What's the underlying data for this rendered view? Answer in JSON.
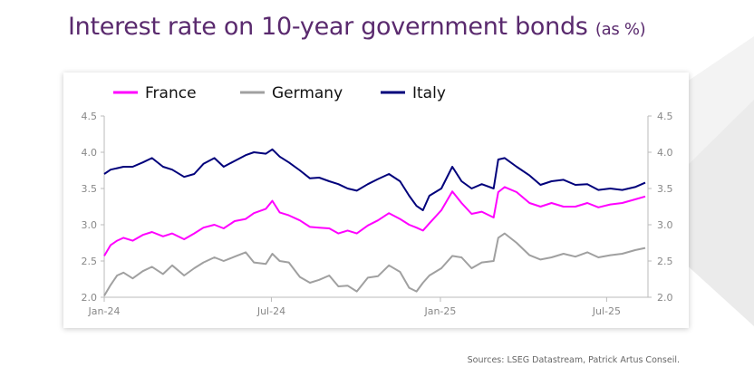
{
  "page": {
    "title": "Interest rate on 10-year government bonds",
    "title_unit": "(as %)",
    "source": "Sources: LSEG Datastream, Patrick Artus Conseil."
  },
  "colors": {
    "title": "#5a2a6e",
    "france": "#ff00ff",
    "germany": "#a0a0a0",
    "italy": "#00007b"
  },
  "chart_data": {
    "type": "line",
    "title": "",
    "xlabel": "",
    "ylabel": "",
    "ylim": [
      2.0,
      4.5
    ],
    "y_ticks": [
      "2.0",
      "2.5",
      "3.0",
      "3.5",
      "4.0",
      "4.5"
    ],
    "x_range": [
      "2024-01-01",
      "2025-08-15"
    ],
    "x_ticks": [
      {
        "label": "Jan-24",
        "date": "2024-01-01"
      },
      {
        "label": "Jul-24",
        "date": "2024-07-01"
      },
      {
        "label": "Jan-25",
        "date": "2025-01-01"
      },
      {
        "label": "Jul-25",
        "date": "2025-07-01"
      }
    ],
    "grid": false,
    "legend_position": "top",
    "series": [
      {
        "name": "France",
        "color": "#ff00ff",
        "points": [
          [
            "2024-01-01",
            2.57
          ],
          [
            "2024-01-08",
            2.72
          ],
          [
            "2024-01-15",
            2.78
          ],
          [
            "2024-01-22",
            2.82
          ],
          [
            "2024-02-01",
            2.78
          ],
          [
            "2024-02-12",
            2.86
          ],
          [
            "2024-02-22",
            2.9
          ],
          [
            "2024-03-05",
            2.84
          ],
          [
            "2024-03-15",
            2.88
          ],
          [
            "2024-03-28",
            2.8
          ],
          [
            "2024-04-08",
            2.88
          ],
          [
            "2024-04-18",
            2.96
          ],
          [
            "2024-04-30",
            3.0
          ],
          [
            "2024-05-10",
            2.95
          ],
          [
            "2024-05-22",
            3.05
          ],
          [
            "2024-06-03",
            3.08
          ],
          [
            "2024-06-12",
            3.16
          ],
          [
            "2024-06-25",
            3.22
          ],
          [
            "2024-07-02",
            3.33
          ],
          [
            "2024-07-10",
            3.17
          ],
          [
            "2024-07-20",
            3.13
          ],
          [
            "2024-08-01",
            3.06
          ],
          [
            "2024-08-12",
            2.97
          ],
          [
            "2024-08-22",
            2.96
          ],
          [
            "2024-09-02",
            2.95
          ],
          [
            "2024-09-12",
            2.88
          ],
          [
            "2024-09-22",
            2.92
          ],
          [
            "2024-10-02",
            2.88
          ],
          [
            "2024-10-14",
            2.99
          ],
          [
            "2024-10-25",
            3.06
          ],
          [
            "2024-11-06",
            3.16
          ],
          [
            "2024-11-18",
            3.08
          ],
          [
            "2024-11-28",
            3.0
          ],
          [
            "2024-12-06",
            2.96
          ],
          [
            "2024-12-13",
            2.92
          ],
          [
            "2024-12-20",
            3.02
          ],
          [
            "2025-01-02",
            3.2
          ],
          [
            "2025-01-14",
            3.46
          ],
          [
            "2025-01-24",
            3.3
          ],
          [
            "2025-02-04",
            3.15
          ],
          [
            "2025-02-15",
            3.18
          ],
          [
            "2025-02-28",
            3.1
          ],
          [
            "2025-03-05",
            3.45
          ],
          [
            "2025-03-12",
            3.52
          ],
          [
            "2025-03-25",
            3.45
          ],
          [
            "2025-04-08",
            3.3
          ],
          [
            "2025-04-20",
            3.25
          ],
          [
            "2025-05-02",
            3.3
          ],
          [
            "2025-05-15",
            3.25
          ],
          [
            "2025-05-28",
            3.25
          ],
          [
            "2025-06-10",
            3.3
          ],
          [
            "2025-06-22",
            3.24
          ],
          [
            "2025-07-05",
            3.28
          ],
          [
            "2025-07-18",
            3.3
          ],
          [
            "2025-08-01",
            3.35
          ],
          [
            "2025-08-12",
            3.39
          ]
        ]
      },
      {
        "name": "Germany",
        "color": "#a0a0a0",
        "points": [
          [
            "2024-01-01",
            2.02
          ],
          [
            "2024-01-08",
            2.17
          ],
          [
            "2024-01-15",
            2.3
          ],
          [
            "2024-01-22",
            2.34
          ],
          [
            "2024-02-01",
            2.26
          ],
          [
            "2024-02-12",
            2.36
          ],
          [
            "2024-02-22",
            2.42
          ],
          [
            "2024-03-05",
            2.32
          ],
          [
            "2024-03-15",
            2.44
          ],
          [
            "2024-03-28",
            2.3
          ],
          [
            "2024-04-08",
            2.4
          ],
          [
            "2024-04-18",
            2.48
          ],
          [
            "2024-04-30",
            2.55
          ],
          [
            "2024-05-10",
            2.5
          ],
          [
            "2024-05-22",
            2.56
          ],
          [
            "2024-06-03",
            2.62
          ],
          [
            "2024-06-12",
            2.48
          ],
          [
            "2024-06-25",
            2.46
          ],
          [
            "2024-07-02",
            2.6
          ],
          [
            "2024-07-10",
            2.5
          ],
          [
            "2024-07-20",
            2.48
          ],
          [
            "2024-08-01",
            2.28
          ],
          [
            "2024-08-12",
            2.2
          ],
          [
            "2024-08-22",
            2.24
          ],
          [
            "2024-09-02",
            2.3
          ],
          [
            "2024-09-12",
            2.15
          ],
          [
            "2024-09-22",
            2.16
          ],
          [
            "2024-10-02",
            2.08
          ],
          [
            "2024-10-14",
            2.27
          ],
          [
            "2024-10-25",
            2.29
          ],
          [
            "2024-11-06",
            2.44
          ],
          [
            "2024-11-18",
            2.35
          ],
          [
            "2024-11-28",
            2.13
          ],
          [
            "2024-12-06",
            2.08
          ],
          [
            "2024-12-13",
            2.2
          ],
          [
            "2024-12-20",
            2.3
          ],
          [
            "2025-01-02",
            2.4
          ],
          [
            "2025-01-14",
            2.57
          ],
          [
            "2025-01-24",
            2.55
          ],
          [
            "2025-02-04",
            2.4
          ],
          [
            "2025-02-15",
            2.48
          ],
          [
            "2025-02-28",
            2.5
          ],
          [
            "2025-03-05",
            2.82
          ],
          [
            "2025-03-12",
            2.88
          ],
          [
            "2025-03-25",
            2.75
          ],
          [
            "2025-04-08",
            2.58
          ],
          [
            "2025-04-20",
            2.52
          ],
          [
            "2025-05-02",
            2.55
          ],
          [
            "2025-05-15",
            2.6
          ],
          [
            "2025-05-28",
            2.56
          ],
          [
            "2025-06-10",
            2.62
          ],
          [
            "2025-06-22",
            2.55
          ],
          [
            "2025-07-05",
            2.58
          ],
          [
            "2025-07-18",
            2.6
          ],
          [
            "2025-08-01",
            2.65
          ],
          [
            "2025-08-12",
            2.68
          ]
        ]
      },
      {
        "name": "Italy",
        "color": "#00007b",
        "points": [
          [
            "2024-01-01",
            3.7
          ],
          [
            "2024-01-08",
            3.76
          ],
          [
            "2024-01-15",
            3.78
          ],
          [
            "2024-01-22",
            3.8
          ],
          [
            "2024-02-01",
            3.8
          ],
          [
            "2024-02-12",
            3.86
          ],
          [
            "2024-02-22",
            3.92
          ],
          [
            "2024-03-05",
            3.8
          ],
          [
            "2024-03-15",
            3.76
          ],
          [
            "2024-03-28",
            3.66
          ],
          [
            "2024-04-08",
            3.7
          ],
          [
            "2024-04-18",
            3.84
          ],
          [
            "2024-04-30",
            3.92
          ],
          [
            "2024-05-10",
            3.8
          ],
          [
            "2024-05-22",
            3.88
          ],
          [
            "2024-06-03",
            3.96
          ],
          [
            "2024-06-12",
            4.0
          ],
          [
            "2024-06-25",
            3.98
          ],
          [
            "2024-07-02",
            4.04
          ],
          [
            "2024-07-10",
            3.94
          ],
          [
            "2024-07-20",
            3.86
          ],
          [
            "2024-08-01",
            3.75
          ],
          [
            "2024-08-12",
            3.64
          ],
          [
            "2024-08-22",
            3.65
          ],
          [
            "2024-09-02",
            3.6
          ],
          [
            "2024-09-12",
            3.56
          ],
          [
            "2024-09-22",
            3.5
          ],
          [
            "2024-10-02",
            3.47
          ],
          [
            "2024-10-14",
            3.56
          ],
          [
            "2024-10-25",
            3.63
          ],
          [
            "2024-11-06",
            3.7
          ],
          [
            "2024-11-18",
            3.6
          ],
          [
            "2024-11-28",
            3.4
          ],
          [
            "2024-12-06",
            3.26
          ],
          [
            "2024-12-13",
            3.2
          ],
          [
            "2024-12-20",
            3.4
          ],
          [
            "2025-01-02",
            3.5
          ],
          [
            "2025-01-14",
            3.8
          ],
          [
            "2025-01-24",
            3.6
          ],
          [
            "2025-02-04",
            3.5
          ],
          [
            "2025-02-15",
            3.56
          ],
          [
            "2025-02-28",
            3.5
          ],
          [
            "2025-03-05",
            3.9
          ],
          [
            "2025-03-12",
            3.92
          ],
          [
            "2025-03-25",
            3.8
          ],
          [
            "2025-04-08",
            3.68
          ],
          [
            "2025-04-20",
            3.55
          ],
          [
            "2025-05-02",
            3.6
          ],
          [
            "2025-05-15",
            3.62
          ],
          [
            "2025-05-28",
            3.55
          ],
          [
            "2025-06-10",
            3.56
          ],
          [
            "2025-06-22",
            3.48
          ],
          [
            "2025-07-05",
            3.5
          ],
          [
            "2025-07-18",
            3.48
          ],
          [
            "2025-08-01",
            3.52
          ],
          [
            "2025-08-12",
            3.58
          ]
        ]
      }
    ]
  }
}
